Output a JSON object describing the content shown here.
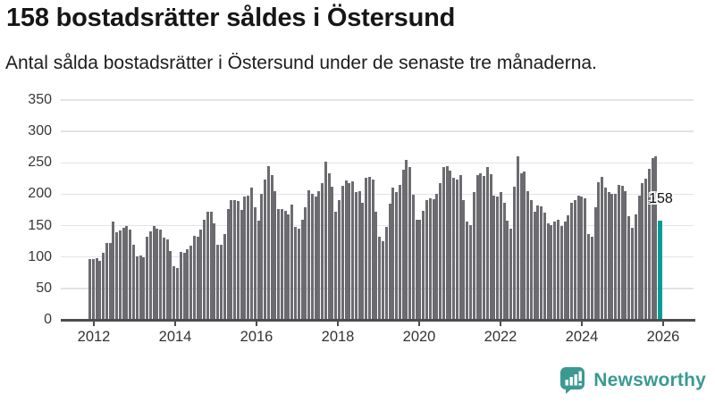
{
  "header": {
    "title": "158 bostadsrätter såldes i Östersund",
    "subtitle": "Antal sålda bostadsrätter i Östersund under de senaste tre månaderna."
  },
  "chart_data": {
    "type": "bar",
    "title": "158 bostadsrätter såldes i Östersund",
    "frequency": "monthly",
    "x_start": "2011-12",
    "x_range": [
      "2012",
      "2026"
    ],
    "ylim": [
      0,
      350
    ],
    "grid": "horizontal",
    "yticks": [
      0,
      50,
      100,
      150,
      200,
      250,
      300,
      350
    ],
    "xticks": [
      "2012",
      "2014",
      "2016",
      "2018",
      "2020",
      "2022",
      "2024",
      "2026"
    ],
    "bar_color": "#6b6b70",
    "highlight_color": "#009e99",
    "highlight_index": 169,
    "annotation_label": "158",
    "values": [
      97,
      97,
      98,
      94,
      106,
      122,
      122,
      157,
      140,
      142,
      146,
      149,
      143,
      120,
      101,
      103,
      99,
      133,
      141,
      149,
      145,
      143,
      131,
      128,
      110,
      85,
      83,
      108,
      106,
      113,
      118,
      134,
      132,
      144,
      159,
      172,
      172,
      153,
      120,
      120,
      137,
      177,
      191,
      191,
      189,
      175,
      197,
      198,
      210,
      179,
      158,
      201,
      224,
      245,
      230,
      205,
      177,
      176,
      173,
      168,
      184,
      148,
      145,
      160,
      179,
      207,
      201,
      196,
      205,
      217,
      252,
      233,
      212,
      172,
      191,
      214,
      222,
      217,
      220,
      203,
      205,
      186,
      226,
      228,
      223,
      172,
      132,
      125,
      148,
      185,
      211,
      203,
      215,
      239,
      254,
      243,
      199,
      160,
      159,
      174,
      191,
      193,
      192,
      201,
      218,
      243,
      245,
      238,
      226,
      224,
      231,
      191,
      156,
      151,
      203,
      231,
      234,
      229,
      243,
      232,
      198,
      196,
      204,
      187,
      158,
      145,
      212,
      260,
      233,
      236,
      205,
      191,
      172,
      182,
      181,
      171,
      154,
      151,
      157,
      159,
      150,
      156,
      167,
      186,
      190,
      198,
      196,
      193,
      137,
      133,
      179,
      219,
      228,
      210,
      204,
      200,
      201,
      215,
      214,
      205,
      165,
      146,
      168,
      198,
      217,
      225,
      241,
      257,
      261,
      158
    ]
  },
  "footer": {
    "brand": "Newsworthy",
    "brand_color": "#3a9a92",
    "logo_icon": "bar-chart-speech-bubble-icon"
  }
}
